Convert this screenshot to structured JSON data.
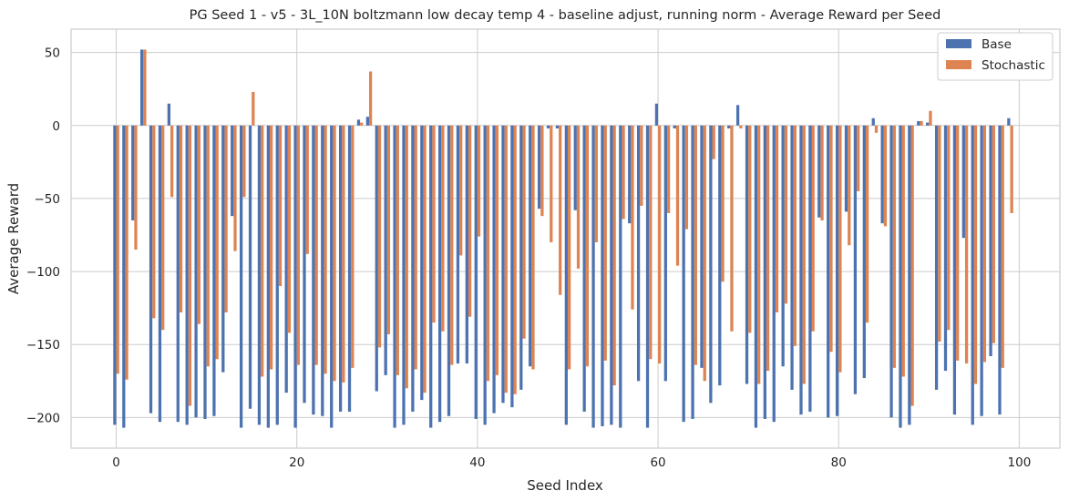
{
  "chart_data": {
    "type": "bar",
    "title": "PG Seed 1 - v5 - 3L_10N boltzmann low decay temp 4 - baseline adjust, running norm - Average Reward per Seed",
    "xlabel": "Seed Index",
    "ylabel": "Average Reward",
    "xlim": [
      -5,
      104.5
    ],
    "ylim": [
      -221,
      66
    ],
    "xticks": [
      0,
      20,
      40,
      60,
      80,
      100
    ],
    "yticks": [
      50,
      0,
      -50,
      -100,
      -150,
      -200
    ],
    "tick_labels_x": [
      "0",
      "20",
      "40",
      "60",
      "80",
      "100"
    ],
    "tick_labels_y": [
      "50",
      "0",
      "−50",
      "−100",
      "−150",
      "−200"
    ],
    "grid": true,
    "legend_position": "top-right",
    "x": [
      0,
      1,
      2,
      3,
      4,
      5,
      6,
      7,
      8,
      9,
      10,
      11,
      12,
      13,
      14,
      15,
      16,
      17,
      18,
      19,
      20,
      21,
      22,
      23,
      24,
      25,
      26,
      27,
      28,
      29,
      30,
      31,
      32,
      33,
      34,
      35,
      36,
      37,
      38,
      39,
      40,
      41,
      42,
      43,
      44,
      45,
      46,
      47,
      48,
      49,
      50,
      51,
      52,
      53,
      54,
      55,
      56,
      57,
      58,
      59,
      60,
      61,
      62,
      63,
      64,
      65,
      66,
      67,
      68,
      69,
      70,
      71,
      72,
      73,
      74,
      75,
      76,
      77,
      78,
      79,
      80,
      81,
      82,
      83,
      84,
      85,
      86,
      87,
      88,
      89,
      90,
      91,
      92,
      93,
      94,
      95,
      96,
      97,
      98,
      99
    ],
    "series": [
      {
        "name": "Base",
        "color": "#4c72b0",
        "values": [
          -205,
          -207,
          -65,
          52,
          -197,
          -203,
          15,
          -203,
          -205,
          -200,
          -201,
          -199,
          -169,
          -62,
          -207,
          -194,
          -205,
          -207,
          -205,
          -183,
          -207,
          -190,
          -198,
          -199,
          -207,
          -196,
          -196,
          4,
          6,
          -182,
          -171,
          -207,
          -205,
          -196,
          -188,
          -207,
          -203,
          -199,
          -163,
          -163,
          -201,
          -205,
          -197,
          -190,
          -193,
          -181,
          -165,
          -57,
          -2,
          -2,
          -205,
          -58,
          -196,
          -207,
          -206,
          -205,
          -207,
          -67,
          -175,
          -207,
          15,
          -175,
          -2,
          -203,
          -201,
          -166,
          -190,
          -178,
          -2,
          14,
          -177,
          -207,
          -201,
          -203,
          -165,
          -181,
          -198,
          -196,
          -63,
          -200,
          -199,
          -59,
          -184,
          -173,
          5,
          -67,
          -200,
          -207,
          -205,
          3,
          2,
          -181,
          -168,
          -198,
          -77,
          -205,
          -199,
          -158,
          -198,
          5
        ]
      },
      {
        "name": "Stochastic",
        "color": "#dd8452",
        "values": [
          -170,
          -174,
          -85,
          52,
          -132,
          -140,
          -49,
          -128,
          -192,
          -136,
          -165,
          -160,
          -128,
          -86,
          -49,
          23,
          -172,
          -167,
          -110,
          -142,
          -164,
          -88,
          -164,
          -170,
          -175,
          -176,
          -166,
          2,
          37,
          -152,
          -143,
          -171,
          -180,
          -167,
          -183,
          -135,
          -141,
          -164,
          -89,
          -131,
          -76,
          -175,
          -171,
          -183,
          -184,
          -146,
          -167,
          -62,
          -80,
          -116,
          -167,
          -98,
          -165,
          -80,
          -161,
          -178,
          -64,
          -126,
          -55,
          -160,
          -163,
          -60,
          -96,
          -71,
          -164,
          -175,
          -23,
          -107,
          -141,
          -2,
          -142,
          -177,
          -168,
          -128,
          -122,
          -151,
          -177,
          -141,
          -65,
          -155,
          -169,
          -82,
          -45,
          -135,
          -5,
          -69,
          -166,
          -172,
          -192,
          3,
          10,
          -148,
          -140,
          -161,
          -163,
          -177,
          -162,
          -149,
          -166,
          -60
        ]
      }
    ]
  }
}
